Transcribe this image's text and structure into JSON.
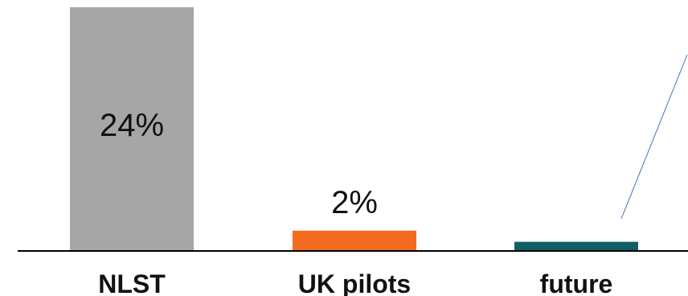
{
  "chart_data": {
    "type": "bar",
    "categories": [
      "NLST",
      "UK pilots",
      "future"
    ],
    "values": [
      24,
      2,
      0.9
    ],
    "data_labels": [
      "24%",
      "2%",
      ""
    ],
    "colors": [
      "#a6a6a6",
      "#f26b21",
      "#0e5f63"
    ],
    "title": "",
    "xlabel": "",
    "ylabel": "",
    "ylim": [
      0,
      24
    ],
    "grid": false,
    "legend": "none"
  }
}
